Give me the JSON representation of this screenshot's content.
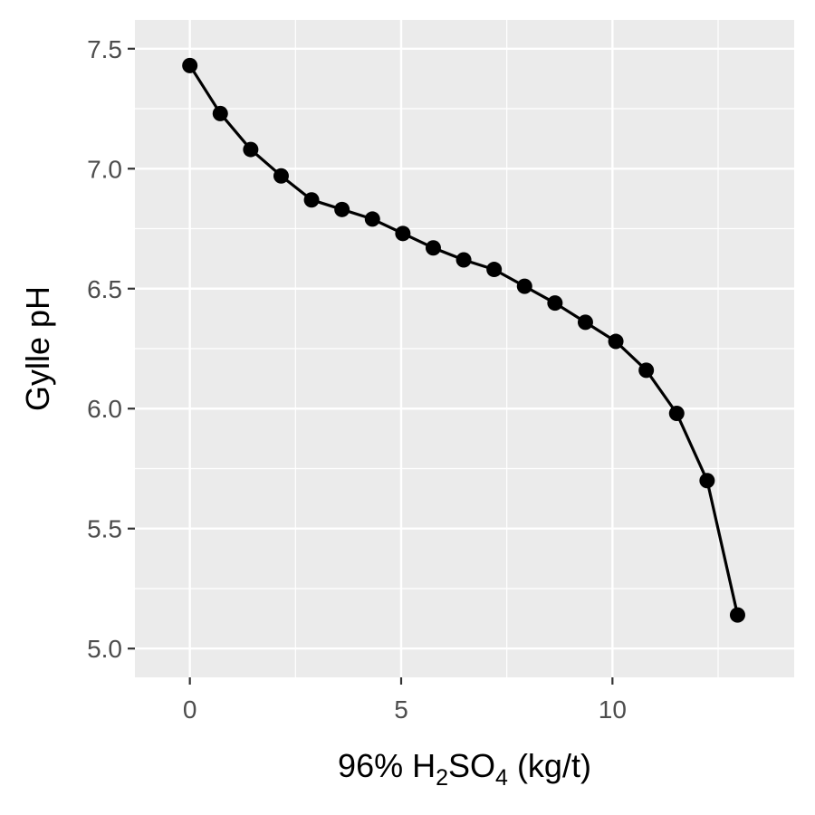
{
  "chart_data": {
    "type": "line",
    "title": "",
    "xlabel": {
      "prefix": "96% H",
      "sub1": "2",
      "mid": "SO",
      "sub2": "4",
      "suffix": " (kg/t)"
    },
    "ylabel": "Gylle pH",
    "xlim": [
      -1.3,
      14.3
    ],
    "ylim": [
      4.88,
      7.62
    ],
    "x_ticks": [
      0,
      5,
      10
    ],
    "x_tick_labels": [
      "0",
      "5",
      "10"
    ],
    "x_minor_ticks": [
      2.5,
      7.5,
      12.5
    ],
    "y_ticks": [
      5.0,
      5.5,
      6.0,
      6.5,
      7.0,
      7.5
    ],
    "y_tick_labels": [
      "5.0",
      "5.5",
      "6.0",
      "6.5",
      "7.0",
      "7.5"
    ],
    "y_minor_ticks": [
      5.25,
      5.75,
      6.25,
      6.75,
      7.25
    ],
    "grid": true,
    "panel_background": "#ebebeb",
    "grid_color": "#ffffff",
    "series": [
      {
        "color": "#000000",
        "x": [
          0,
          0.72,
          1.44,
          2.16,
          2.88,
          3.6,
          4.32,
          5.04,
          5.76,
          6.48,
          7.2,
          7.92,
          8.64,
          9.36,
          10.08,
          10.8,
          11.52,
          12.24,
          12.96
        ],
        "y": [
          7.43,
          7.23,
          7.08,
          6.97,
          6.87,
          6.83,
          6.79,
          6.73,
          6.67,
          6.62,
          6.58,
          6.51,
          6.44,
          6.36,
          6.28,
          6.16,
          5.98,
          5.7,
          5.14
        ]
      }
    ]
  }
}
